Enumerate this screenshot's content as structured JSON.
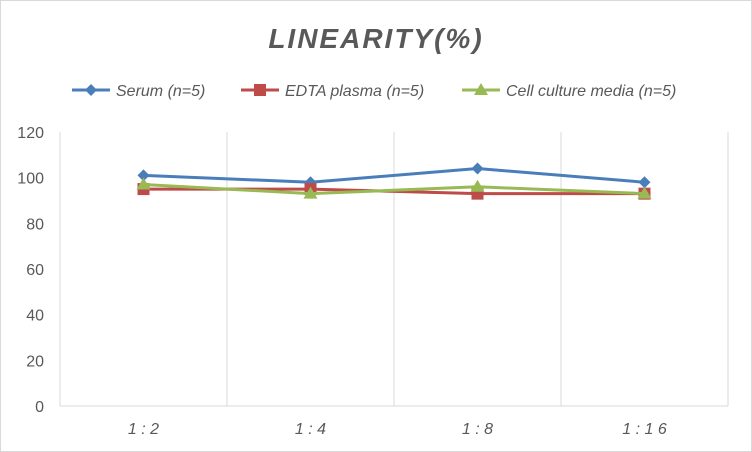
{
  "chart_data": {
    "type": "line",
    "title": "LINEARITY(%)",
    "categories": [
      "1:2",
      "1:4",
      "1:8",
      "1:16"
    ],
    "ylim": [
      0,
      120
    ],
    "yticks": [
      0,
      20,
      40,
      60,
      80,
      100,
      120
    ],
    "grid": "vertical",
    "legend": "top",
    "series": [
      {
        "name": "Serum (n=5)",
        "values": [
          101,
          98,
          104,
          98
        ],
        "color": "#4a7ebb",
        "marker": "diamond"
      },
      {
        "name": "EDTA plasma (n=5)",
        "values": [
          95,
          95,
          93,
          93
        ],
        "color": "#be4b48",
        "marker": "square"
      },
      {
        "name": "Cell culture media (n=5)",
        "values": [
          97,
          93,
          96,
          93
        ],
        "color": "#98b954",
        "marker": "triangle"
      }
    ]
  }
}
